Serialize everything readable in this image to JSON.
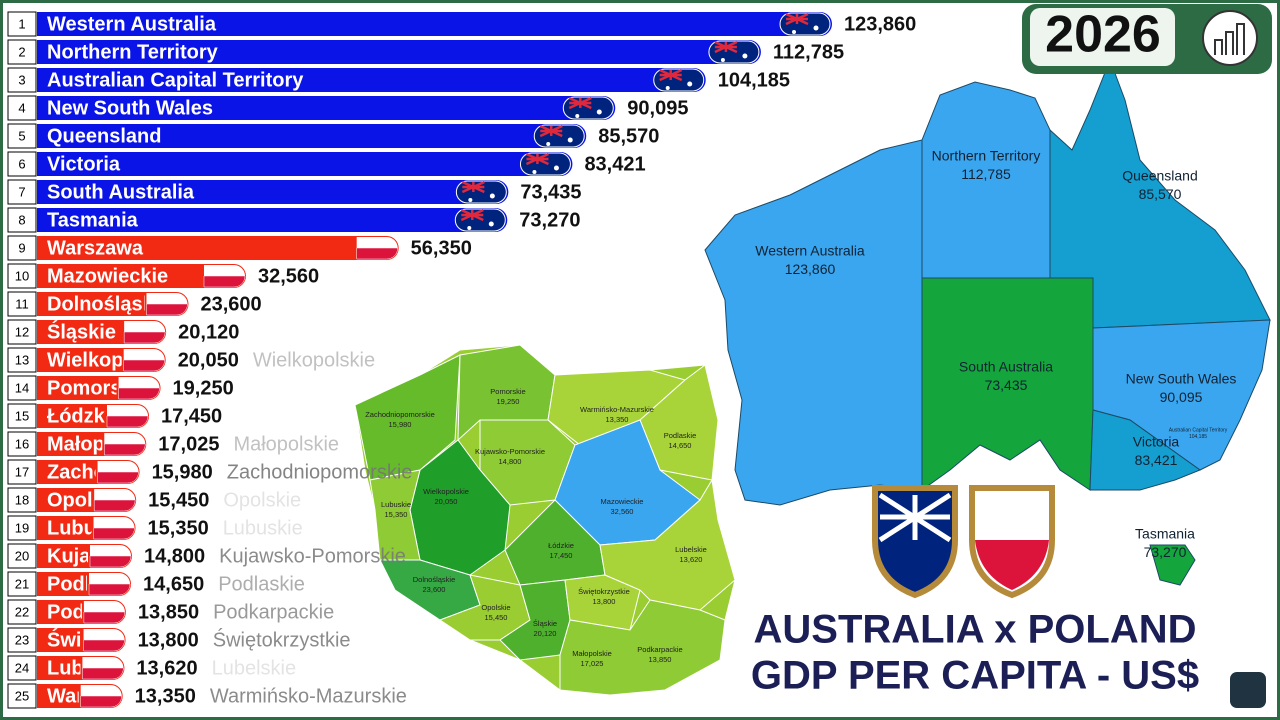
{
  "chart_data": {
    "type": "bar",
    "orientation": "horizontal",
    "year": "2026",
    "title": [
      "AUSTRALIA x POLAND",
      "GDP PER CAPITA - US$"
    ],
    "ranks": [
      1,
      2,
      3,
      4,
      5,
      6,
      7,
      8,
      9,
      10,
      11,
      12,
      13,
      14,
      15,
      16,
      17,
      18,
      19,
      20,
      21,
      22,
      23,
      24,
      25
    ],
    "categories": [
      "Western Australia",
      "Northern Territory",
      "Australian Capital Territory",
      "New South Wales",
      "Queensland",
      "Victoria",
      "South Australia",
      "Tasmania",
      "Warszawa",
      "Mazowieckie",
      "Dolnośląskie",
      "Śląskie",
      "Wielkopolskie",
      "Pomorskie",
      "Łódzkie",
      "Małopolskie",
      "Zachodniopomorskie",
      "Opolskie",
      "Lubuskie",
      "Kujawsko-Pomorskie",
      "Podlaskie",
      "Podkarpackie",
      "Świętokrzystkie",
      "Lubelskie",
      "Warmińsko-Mazurskie"
    ],
    "values": [
      123860,
      112785,
      104185,
      90095,
      85570,
      83421,
      73435,
      73270,
      56350,
      32560,
      23600,
      20120,
      20050,
      19250,
      17450,
      17025,
      15980,
      15450,
      15350,
      14800,
      14650,
      13850,
      13800,
      13620,
      13350
    ],
    "value_labels": [
      "123,860",
      "112,785",
      "104,185",
      "90,095",
      "85,570",
      "83,421",
      "73,435",
      "73,270",
      "56,350",
      "32,560",
      "23,600",
      "20,120",
      "20,050",
      "19,250",
      "17,450",
      "17,025",
      "15,980",
      "15,450",
      "15,350",
      "14,800",
      "14,650",
      "13,850",
      "13,800",
      "13,620",
      "13,350"
    ],
    "colors": [
      "#0a14e6",
      "#0a14e6",
      "#0a14e6",
      "#0a14e6",
      "#0a14e6",
      "#0a14e6",
      "#0a14e6",
      "#0a14e6",
      "#f22a14",
      "#f22a14",
      "#f22a14",
      "#f22a14",
      "#f22a14",
      "#f22a14",
      "#f22a14",
      "#f22a14",
      "#f22a14",
      "#f22a14",
      "#f22a14",
      "#f22a14",
      "#f22a14",
      "#f22a14",
      "#f22a14",
      "#f22a14",
      "#f22a14"
    ]
  }
}
